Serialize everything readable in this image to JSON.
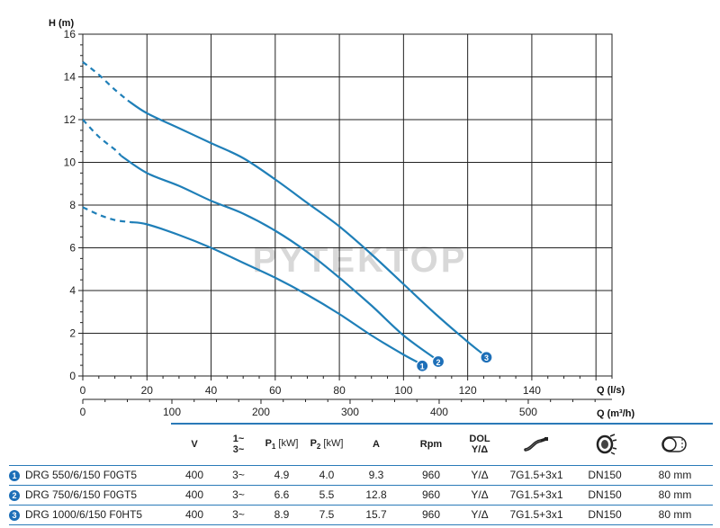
{
  "chart_data": {
    "type": "line",
    "watermark": "PYTEKTOP",
    "ylabel": "H (m)",
    "xlabel": "Q (l/s)",
    "x2label": "Q (m³/h)",
    "ylim": [
      0,
      16
    ],
    "xlim": [
      0,
      165
    ],
    "x2lim": [
      0,
      594
    ],
    "yticks": [
      0,
      2,
      4,
      6,
      8,
      10,
      12,
      14,
      16
    ],
    "xticks": [
      0,
      20,
      40,
      60,
      80,
      100,
      120,
      140
    ],
    "x2ticks": [
      0,
      100,
      200,
      300,
      400,
      500
    ],
    "grid": true,
    "series": [
      {
        "name": "1",
        "color": "#1f7fb8",
        "dashed": [
          [
            0,
            7.9
          ],
          [
            5,
            7.55
          ],
          [
            10,
            7.3
          ],
          [
            15,
            7.2
          ]
        ],
        "x": [
          15,
          20,
          30,
          40,
          50,
          60,
          70,
          80,
          90,
          100,
          105
        ],
        "y": [
          7.2,
          7.1,
          6.6,
          6.0,
          5.3,
          4.6,
          3.8,
          2.9,
          1.9,
          1.0,
          0.6
        ]
      },
      {
        "name": "2",
        "color": "#1f7fb8",
        "dashed": [
          [
            0,
            12.0
          ],
          [
            5,
            11.2
          ],
          [
            10,
            10.6
          ],
          [
            12,
            10.3
          ]
        ],
        "x": [
          12,
          20,
          30,
          40,
          50,
          60,
          70,
          80,
          90,
          100,
          110
        ],
        "y": [
          10.3,
          9.5,
          8.9,
          8.2,
          7.6,
          6.8,
          5.8,
          4.6,
          3.3,
          1.9,
          0.8
        ]
      },
      {
        "name": "3",
        "color": "#1f7fb8",
        "dashed": [
          [
            0,
            14.7
          ],
          [
            5,
            14.1
          ],
          [
            10,
            13.4
          ],
          [
            14,
            12.9
          ]
        ],
        "x": [
          14,
          20,
          30,
          40,
          50,
          60,
          70,
          80,
          90,
          100,
          110,
          120,
          125
        ],
        "y": [
          12.9,
          12.3,
          11.6,
          10.9,
          10.2,
          9.2,
          8.1,
          7.0,
          5.7,
          4.3,
          2.9,
          1.6,
          1.0
        ]
      }
    ]
  },
  "table": {
    "headers": {
      "v": "V",
      "phase_top": "1~",
      "phase_bottom": "3~",
      "p1": "P",
      "p1_sub": "1",
      "p1_unit": " [kW]",
      "p2": "P",
      "p2_sub": "2",
      "p2_unit": " [kW]",
      "a": "A",
      "rpm": "Rpm",
      "dol_top": "DOL",
      "dol_bottom": "Y/Δ"
    },
    "icons": [
      "cable-icon",
      "outlet-flange-icon",
      "solids-passage-icon"
    ],
    "rows": [
      {
        "badge": "1",
        "model": "DRG 550/6/150 F0GT5",
        "v": "400",
        "phase": "3~",
        "p1": "4.9",
        "p2": "4.0",
        "a": "9.3",
        "rpm": "960",
        "start": "Y/Δ",
        "cable": "7G1.5+3x1",
        "outlet": "DN150",
        "passage": "80 mm"
      },
      {
        "badge": "2",
        "model": "DRG 750/6/150 F0GT5",
        "v": "400",
        "phase": "3~",
        "p1": "6.6",
        "p2": "5.5",
        "a": "12.8",
        "rpm": "960",
        "start": "Y/Δ",
        "cable": "7G1.5+3x1",
        "outlet": "DN150",
        "passage": "80 mm"
      },
      {
        "badge": "3",
        "model": "DRG 1000/6/150 F0HT5",
        "v": "400",
        "phase": "3~",
        "p1": "8.9",
        "p2": "7.5",
        "a": "15.7",
        "rpm": "960",
        "start": "Y/Δ",
        "cable": "7G1.5+3x1",
        "outlet": "DN150",
        "passage": "80 mm"
      }
    ]
  }
}
